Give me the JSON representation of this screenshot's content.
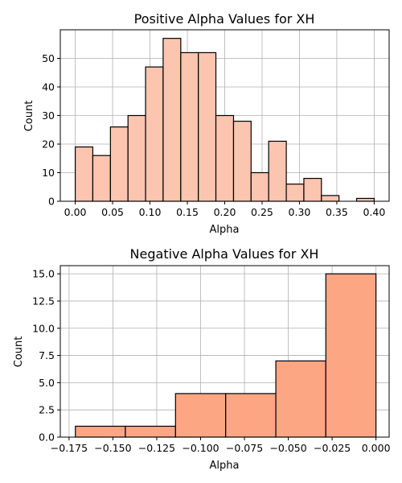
{
  "chart_data": [
    {
      "type": "bar",
      "title": "Positive Alpha Values for XH",
      "xlabel": "Alpha",
      "ylabel": "Count",
      "xlim": [
        -0.02,
        0.42
      ],
      "ylim": [
        0,
        60
      ],
      "grid": true,
      "bar_color": "#fcc5b0",
      "edge_color": "#000000",
      "bin_width": 0.02353,
      "bins": [
        {
          "x0": 0.0,
          "x1": 0.0235,
          "count": 19
        },
        {
          "x0": 0.0235,
          "x1": 0.0471,
          "count": 16
        },
        {
          "x0": 0.0471,
          "x1": 0.0706,
          "count": 26
        },
        {
          "x0": 0.0706,
          "x1": 0.0941,
          "count": 30
        },
        {
          "x0": 0.0941,
          "x1": 0.1176,
          "count": 47
        },
        {
          "x0": 0.1176,
          "x1": 0.1412,
          "count": 57
        },
        {
          "x0": 0.1412,
          "x1": 0.1647,
          "count": 52
        },
        {
          "x0": 0.1647,
          "x1": 0.1882,
          "count": 52
        },
        {
          "x0": 0.1882,
          "x1": 0.2118,
          "count": 30
        },
        {
          "x0": 0.2118,
          "x1": 0.2353,
          "count": 28
        },
        {
          "x0": 0.2353,
          "x1": 0.2588,
          "count": 10
        },
        {
          "x0": 0.2588,
          "x1": 0.2824,
          "count": 21
        },
        {
          "x0": 0.2824,
          "x1": 0.3059,
          "count": 6
        },
        {
          "x0": 0.3059,
          "x1": 0.3294,
          "count": 8
        },
        {
          "x0": 0.3294,
          "x1": 0.3529,
          "count": 2
        },
        {
          "x0": 0.3529,
          "x1": 0.3765,
          "count": 0
        },
        {
          "x0": 0.3765,
          "x1": 0.4,
          "count": 1
        }
      ],
      "x_ticks": [
        0.0,
        0.05,
        0.1,
        0.15,
        0.2,
        0.25,
        0.3,
        0.35,
        0.4
      ],
      "x_tick_labels": [
        "0.00",
        "0.05",
        "0.10",
        "0.15",
        "0.20",
        "0.25",
        "0.30",
        "0.35",
        "0.40"
      ],
      "y_ticks": [
        0,
        10,
        20,
        30,
        40,
        50
      ],
      "y_tick_labels": [
        "0",
        "10",
        "20",
        "30",
        "40",
        "50"
      ]
    },
    {
      "type": "bar",
      "title": "Negative Alpha Values for XH",
      "xlabel": "Alpha",
      "ylabel": "Count",
      "xlim": [
        -0.18,
        0.0075
      ],
      "ylim": [
        0,
        15.75
      ],
      "grid": true,
      "bar_color": "#fca683",
      "edge_color": "#000000",
      "bin_width": 0.02857,
      "bins": [
        {
          "x0": -0.1714,
          "x1": -0.1429,
          "count": 1
        },
        {
          "x0": -0.1429,
          "x1": -0.1143,
          "count": 1
        },
        {
          "x0": -0.1143,
          "x1": -0.0857,
          "count": 4
        },
        {
          "x0": -0.0857,
          "x1": -0.0571,
          "count": 4
        },
        {
          "x0": -0.0571,
          "x1": -0.0286,
          "count": 7
        },
        {
          "x0": -0.0286,
          "x1": 0.0,
          "count": 15
        }
      ],
      "x_ticks": [
        -0.175,
        -0.15,
        -0.125,
        -0.1,
        -0.075,
        -0.05,
        -0.025,
        0.0
      ],
      "x_tick_labels": [
        "−0.175",
        "−0.150",
        "−0.125",
        "−0.100",
        "−0.075",
        "−0.050",
        "−0.025",
        "0.000"
      ],
      "y_ticks": [
        0,
        2.5,
        5,
        7.5,
        10,
        12.5,
        15
      ],
      "y_tick_labels": [
        "0.0",
        "2.5",
        "5.0",
        "7.5",
        "10.0",
        "12.5",
        "15.0"
      ]
    }
  ]
}
